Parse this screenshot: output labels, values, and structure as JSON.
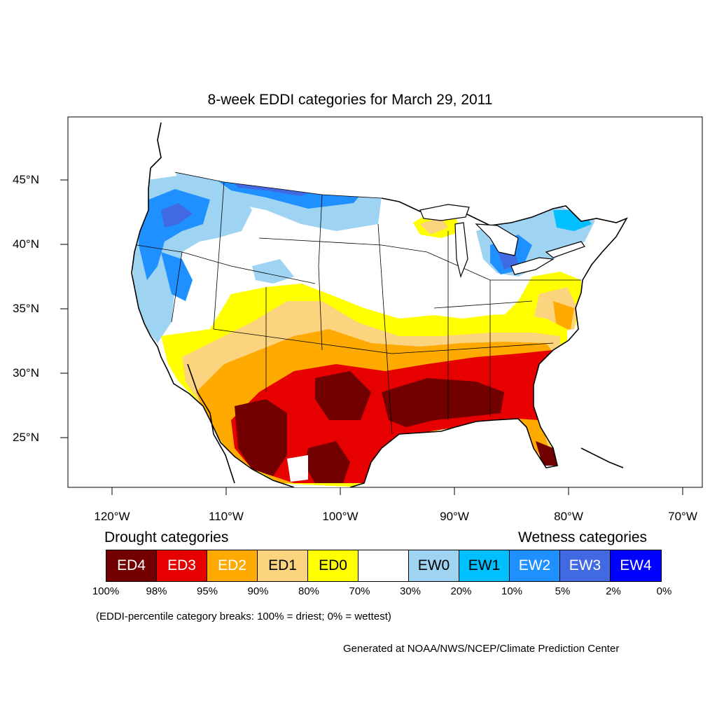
{
  "title": "8-week EDDI categories for March 29, 2011",
  "lat_labels": [
    "45°N",
    "40°N",
    "35°N",
    "30°N",
    "25°N"
  ],
  "lon_labels": [
    "120°W",
    "110°W",
    "100°W",
    "90°W",
    "80°W",
    "70°W"
  ],
  "legend": {
    "drought_heading": "Drought categories",
    "wetness_heading": "Wetness categories",
    "categories": [
      {
        "label": "ED4",
        "color": "#730000",
        "text_color": "#ffffff"
      },
      {
        "label": "ED3",
        "color": "#e60000",
        "text_color": "#ffffff"
      },
      {
        "label": "ED2",
        "color": "#ffaa00",
        "text_color": "#ffffff"
      },
      {
        "label": "ED1",
        "color": "#fcd37f",
        "text_color": "#000000"
      },
      {
        "label": "ED0",
        "color": "#ffff00",
        "text_color": "#000000"
      },
      {
        "label": "",
        "color": "#ffffff",
        "text_color": "#000000"
      },
      {
        "label": "EW0",
        "color": "#9fd3f2",
        "text_color": "#000000"
      },
      {
        "label": "EW1",
        "color": "#00bfff",
        "text_color": "#000000"
      },
      {
        "label": "EW2",
        "color": "#1e90ff",
        "text_color": "#ffffff"
      },
      {
        "label": "EW3",
        "color": "#4169e1",
        "text_color": "#ffffff"
      },
      {
        "label": "EW4",
        "color": "#0000ff",
        "text_color": "#ffffff"
      }
    ],
    "breaks": [
      "100%",
      "98%",
      "95%",
      "90%",
      "80%",
      "70%",
      "30%",
      "20%",
      "10%",
      "5%",
      "2%",
      "0%"
    ]
  },
  "note": "(EDDI-percentile category breaks: 100% = driest; 0% = wettest)",
  "credit": "Generated at NOAA/NWS/NCEP/Climate Prediction Center"
}
